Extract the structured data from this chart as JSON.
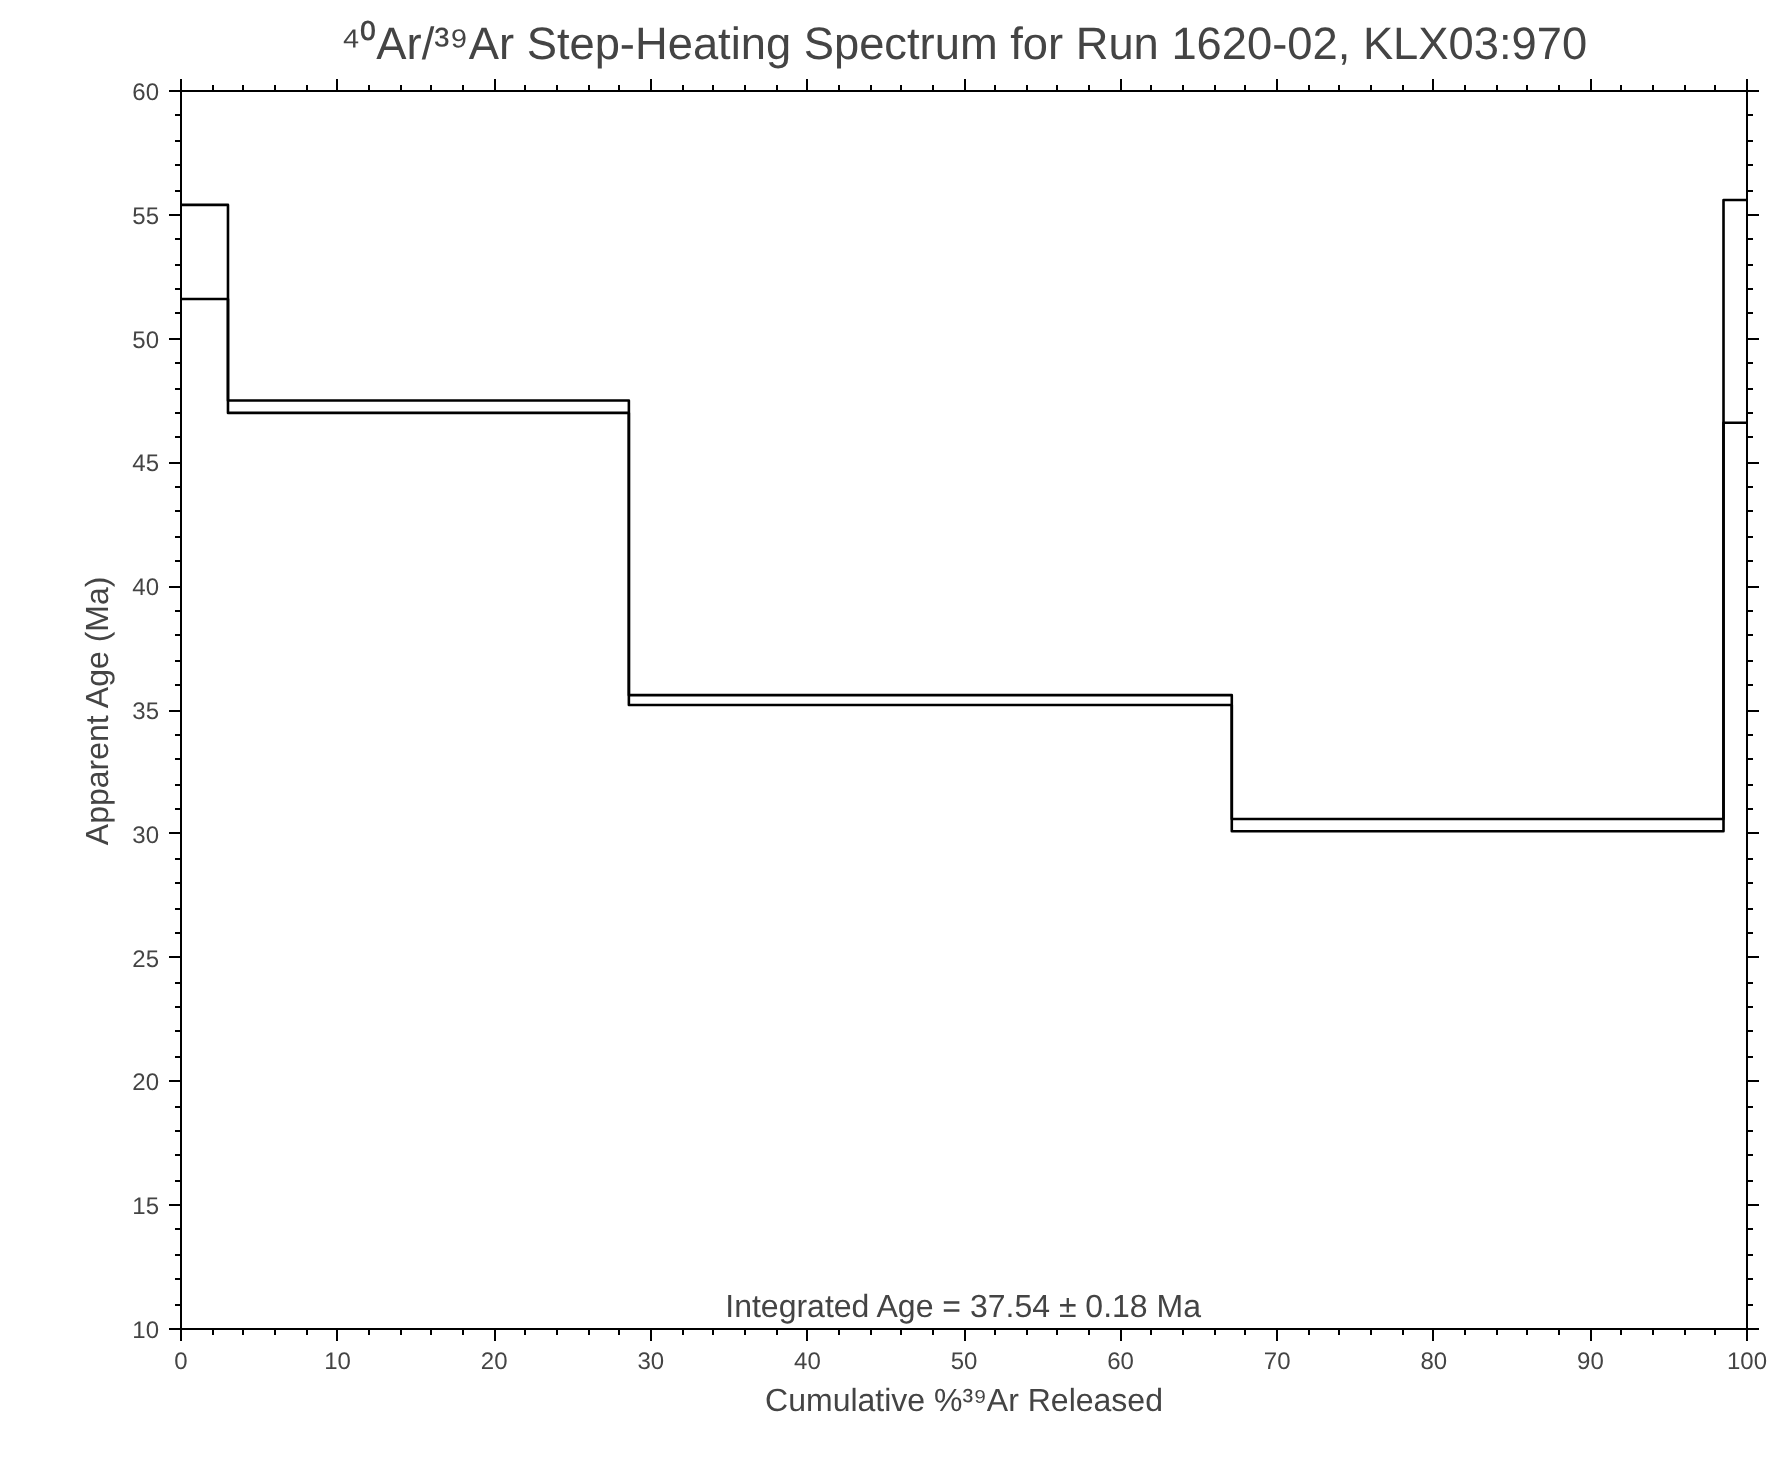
{
  "chart_data": {
    "type": "step",
    "title": "⁴⁰Ar/³⁹Ar Step-Heating Spectrum for Run 1620-02, KLX03:970",
    "xlabel": "Cumulative %³⁹Ar Released",
    "ylabel": "Apparent Age (Ma)",
    "x": [
      0,
      3.0,
      28.6,
      67.1,
      98.5,
      100
    ],
    "series": [
      {
        "color": "#000000",
        "values": [
          55.4,
          47.5,
          35.6,
          30.6,
          55.6,
          55.6
        ]
      },
      {
        "color": "#000000",
        "values": [
          51.6,
          47.0,
          35.2,
          30.1,
          46.6,
          46.6
        ]
      }
    ],
    "xlim": [
      0,
      100
    ],
    "xticks": [
      0,
      10,
      20,
      30,
      40,
      50,
      60,
      70,
      80,
      90,
      100
    ],
    "ylim": [
      10,
      60
    ],
    "yticks": [
      10,
      15,
      20,
      25,
      30,
      35,
      40,
      45,
      50,
      55,
      60
    ],
    "annotations": [
      "Integrated Age = 37.54 ± 0.18 Ma"
    ]
  }
}
